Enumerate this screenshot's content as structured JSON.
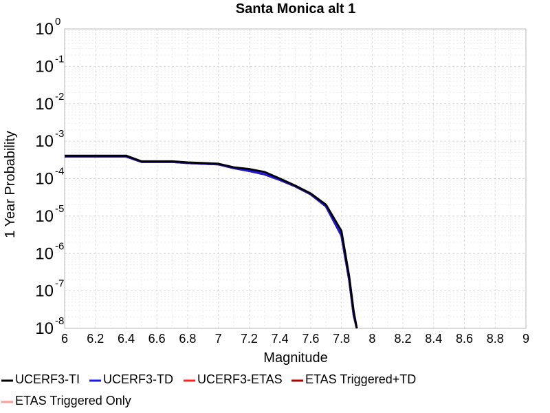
{
  "chart_data": {
    "type": "line",
    "title": "Santa Monica alt 1",
    "xlabel": "Magnitude",
    "ylabel": "1 Year Probability",
    "xlim": [
      6,
      9
    ],
    "ylim": [
      1e-08,
      1
    ],
    "yscale": "log",
    "grid": true,
    "legend_position": "bottom",
    "x_ticks": [
      "6",
      "6.2",
      "6.4",
      "6.6",
      "6.8",
      "7",
      "7.2",
      "7.4",
      "7.6",
      "7.8",
      "8",
      "8.2",
      "8.4",
      "8.6",
      "8.8",
      "9"
    ],
    "y_ticks": [
      {
        "base": "10",
        "exp": "0"
      },
      {
        "base": "10",
        "exp": "-1"
      },
      {
        "base": "10",
        "exp": "-2"
      },
      {
        "base": "10",
        "exp": "-3"
      },
      {
        "base": "10",
        "exp": "-4"
      },
      {
        "base": "10",
        "exp": "-5"
      },
      {
        "base": "10",
        "exp": "-6"
      },
      {
        "base": "10",
        "exp": "-7"
      },
      {
        "base": "10",
        "exp": "-8"
      }
    ],
    "series": [
      {
        "name": "UCERF3-TI",
        "color": "#000000",
        "x": [
          6.0,
          6.1,
          6.2,
          6.3,
          6.4,
          6.5,
          6.6,
          6.7,
          6.8,
          6.9,
          7.0,
          7.1,
          7.2,
          7.3,
          7.4,
          7.5,
          7.6,
          7.7,
          7.8,
          7.85,
          7.88,
          7.9
        ],
        "y": [
          0.00041,
          0.00041,
          0.00041,
          0.00041,
          0.00041,
          0.00029,
          0.00029,
          0.00029,
          0.00027,
          0.00026,
          0.00025,
          0.0002,
          0.00018,
          0.00015,
          0.0001,
          6.5e-05,
          4e-05,
          2e-05,
          4e-06,
          2.5e-07,
          2.8e-08,
          1e-08
        ]
      },
      {
        "name": "UCERF3-TD",
        "color": "#1a1ae6",
        "x": [
          6.0,
          6.1,
          6.2,
          6.3,
          6.4,
          6.5,
          6.6,
          6.7,
          6.8,
          6.9,
          7.0,
          7.1,
          7.2,
          7.3,
          7.4,
          7.5,
          7.6,
          7.7,
          7.8,
          7.85,
          7.88,
          7.9
        ],
        "y": [
          0.00039,
          0.00039,
          0.00039,
          0.00039,
          0.00039,
          0.00028,
          0.00028,
          0.00028,
          0.00026,
          0.00025,
          0.00024,
          0.00019,
          0.00016,
          0.00013,
          9.2e-05,
          6.2e-05,
          3.8e-05,
          1.8e-05,
          3e-06,
          2e-07,
          2.2e-08,
          1e-08
        ]
      },
      {
        "name": "UCERF3-ETAS",
        "color": "#ff2020",
        "x": [
          6.0,
          6.1,
          6.2,
          6.3,
          6.4,
          6.5,
          6.6,
          6.7,
          6.8,
          6.9,
          7.0,
          7.1,
          7.2,
          7.3,
          7.4,
          7.5,
          7.6,
          7.7,
          7.8,
          7.85,
          7.88,
          7.9
        ],
        "y": [
          0.00039,
          0.00039,
          0.00039,
          0.00039,
          0.00039,
          0.00028,
          0.00028,
          0.00028,
          0.00026,
          0.00025,
          0.00024,
          0.00019,
          0.00016,
          0.00013,
          9.2e-05,
          6.2e-05,
          3.8e-05,
          1.8e-05,
          3e-06,
          2e-07,
          2.2e-08,
          1e-08
        ]
      },
      {
        "name": "ETAS Triggered+TD",
        "color": "#b00000",
        "x": [
          6.0,
          6.1,
          6.2,
          6.3,
          6.4,
          6.5,
          6.6,
          6.7,
          6.8,
          6.9,
          7.0,
          7.1,
          7.2,
          7.3,
          7.4,
          7.5,
          7.6,
          7.7,
          7.8,
          7.85,
          7.88,
          7.9
        ],
        "y": [
          0.00039,
          0.00039,
          0.00039,
          0.00039,
          0.00039,
          0.00028,
          0.00028,
          0.00028,
          0.00026,
          0.00025,
          0.00024,
          0.00019,
          0.00016,
          0.00013,
          9.2e-05,
          6.2e-05,
          3.8e-05,
          1.8e-05,
          3e-06,
          2e-07,
          2.2e-08,
          1e-08
        ]
      },
      {
        "name": "ETAS Triggered Only",
        "color": "#ff9a9a",
        "x": [],
        "y": []
      }
    ]
  }
}
